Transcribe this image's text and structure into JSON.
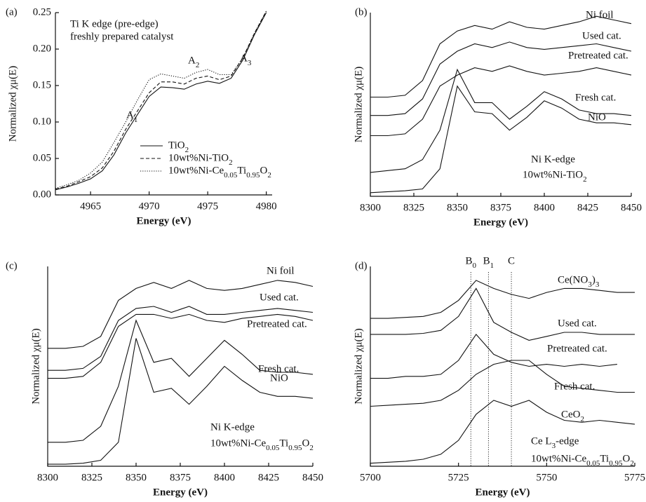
{
  "chart_data": [
    {
      "type": "line",
      "panel": "(a)",
      "title_lines": [
        "Ti K edge (pre-edge)",
        "freshly prepared catalyst"
      ],
      "annotations": [
        "A1",
        "A2",
        "A3"
      ],
      "xlabel": "Energy (eV)",
      "ylabel": "Normalized χμ(E)",
      "xlim": [
        4962,
        4980.5
      ],
      "ylim": [
        0,
        0.25
      ],
      "xticks": [
        4965,
        4970,
        4975,
        4980
      ],
      "yticks": [
        {
          "value": 0,
          "label": "0.00"
        },
        0.05,
        {
          "value": 0.1,
          "label": "0.10"
        },
        0.15,
        {
          "value": 0.2,
          "label": "0.20"
        },
        0.25
      ],
      "legend": "lower-right",
      "x": [
        4962,
        4963,
        4964,
        4965,
        4966,
        4967,
        4968,
        4969,
        4970,
        4971,
        4972,
        4973,
        4974,
        4975,
        4976,
        4977,
        4978,
        4979,
        4980
      ],
      "series": [
        {
          "name": "TiO2",
          "color": "#111111",
          "dash": "solid",
          "values": [
            0.007,
            0.011,
            0.016,
            0.022,
            0.033,
            0.055,
            0.085,
            0.11,
            0.135,
            0.148,
            0.147,
            0.145,
            0.152,
            0.156,
            0.153,
            0.16,
            0.185,
            0.22,
            0.25
          ]
        },
        {
          "name": "10wt%Ni-TiO2",
          "color": "#111111",
          "dash": "dashed",
          "values": [
            0.008,
            0.012,
            0.018,
            0.025,
            0.037,
            0.06,
            0.09,
            0.115,
            0.14,
            0.155,
            0.155,
            0.152,
            0.16,
            0.163,
            0.158,
            0.163,
            0.188,
            0.222,
            0.252
          ]
        },
        {
          "name": "10wt%Ni-Ce0.05Ti0.95O2",
          "color": "#111111",
          "dash": "dotted",
          "values": [
            0.009,
            0.014,
            0.02,
            0.03,
            0.045,
            0.072,
            0.1,
            0.13,
            0.158,
            0.166,
            0.163,
            0.16,
            0.168,
            0.172,
            0.165,
            0.165,
            0.188,
            0.222,
            0.252
          ]
        }
      ]
    },
    {
      "type": "line",
      "panel": "(b)",
      "notes": [
        "Ni K-edge",
        "10wt%Ni-TiO2"
      ],
      "xlabel": "Energy (eV)",
      "ylabel": "Normalized χμ(E)",
      "xlim": [
        8300,
        8450
      ],
      "ylim": [
        0,
        10
      ],
      "xticks": [
        8300,
        8325,
        8350,
        8375,
        8400,
        8425,
        8450
      ],
      "x": [
        8300,
        8310,
        8320,
        8330,
        8340,
        8350,
        8360,
        8370,
        8380,
        8390,
        8400,
        8410,
        8420,
        8430,
        8440,
        8450
      ],
      "series": [
        {
          "name": "Ni foil",
          "color": "#111111",
          "values": [
            5.4,
            5.4,
            5.5,
            6.3,
            8.3,
            9.0,
            9.3,
            9.1,
            9.5,
            9.2,
            9.1,
            9.3,
            9.5,
            9.8,
            9.6,
            9.4
          ]
        },
        {
          "name": "Used cat.",
          "color": "#111111",
          "values": [
            4.4,
            4.4,
            4.5,
            5.3,
            7.2,
            7.9,
            8.3,
            8.1,
            8.4,
            8.1,
            8.0,
            8.1,
            8.2,
            8.3,
            8.1,
            7.9
          ]
        },
        {
          "name": "Pretreated cat.",
          "color": "#111111",
          "values": [
            3.3,
            3.3,
            3.4,
            4.2,
            6.0,
            6.6,
            7.0,
            6.8,
            7.1,
            6.8,
            6.6,
            6.7,
            6.8,
            7.0,
            6.8,
            6.6
          ]
        },
        {
          "name": "Fresh cat.",
          "color": "#111111",
          "values": [
            1.3,
            1.4,
            1.5,
            2.0,
            3.6,
            6.9,
            5.1,
            5.1,
            4.2,
            4.9,
            5.7,
            5.3,
            4.7,
            4.5,
            4.5,
            4.4
          ]
        },
        {
          "name": "NiO",
          "color": "#111111",
          "values": [
            0.2,
            0.25,
            0.3,
            0.4,
            1.5,
            6.0,
            4.6,
            4.5,
            3.6,
            4.3,
            5.2,
            4.8,
            4.2,
            4.0,
            4.0,
            3.9
          ]
        }
      ]
    },
    {
      "type": "line",
      "panel": "(c)",
      "notes": [
        "Ni K-edge",
        "10wt%Ni-Ce0.05Ti0.95O2"
      ],
      "xlabel": "Energy (eV)",
      "ylabel": "Normalized χμ(E)",
      "xlim": [
        8300,
        8450
      ],
      "ylim": [
        0,
        10
      ],
      "xticks": [
        8300,
        8325,
        8350,
        8375,
        8400,
        8425,
        8450
      ],
      "x": [
        8300,
        8310,
        8320,
        8330,
        8340,
        8350,
        8360,
        8370,
        8380,
        8390,
        8400,
        8410,
        8420,
        8430,
        8440,
        8450
      ],
      "series": [
        {
          "name": "Ni foil",
          "color": "#111111",
          "values": [
            5.9,
            5.9,
            6.0,
            6.5,
            8.3,
            8.9,
            9.2,
            8.9,
            9.3,
            8.9,
            8.8,
            8.9,
            9.1,
            9.3,
            9.2,
            9.0
          ]
        },
        {
          "name": "Used cat.",
          "color": "#111111",
          "values": [
            4.8,
            4.8,
            4.9,
            5.5,
            7.3,
            7.9,
            8.0,
            7.7,
            8.0,
            7.6,
            7.6,
            7.7,
            7.8,
            7.9,
            7.8,
            7.7
          ]
        },
        {
          "name": "Pretreated cat.",
          "color": "#111111",
          "values": [
            4.4,
            4.4,
            4.5,
            5.2,
            7.0,
            7.6,
            7.6,
            7.4,
            7.6,
            7.3,
            7.2,
            7.4,
            7.5,
            7.6,
            7.5,
            7.3
          ]
        },
        {
          "name": "Fresh cat.",
          "color": "#111111",
          "values": [
            1.2,
            1.2,
            1.3,
            2.0,
            4.0,
            7.3,
            5.2,
            5.4,
            4.5,
            5.4,
            6.3,
            5.6,
            4.8,
            4.7,
            4.7,
            4.6
          ]
        },
        {
          "name": "NiO",
          "color": "#111111",
          "values": [
            0.1,
            0.1,
            0.15,
            0.3,
            1.2,
            6.4,
            3.7,
            3.9,
            3.1,
            4.0,
            5.0,
            4.3,
            3.7,
            3.5,
            3.5,
            3.4
          ]
        }
      ]
    },
    {
      "type": "line",
      "panel": "(d)",
      "notes": [
        "Ce L3-edge",
        "10wt%Ni-Ce0.05Ti0.95O2"
      ],
      "markers": [
        {
          "label": "B0",
          "x": 5728.5
        },
        {
          "label": "B1",
          "x": 5733.5
        },
        {
          "label": "C",
          "x": 5740
        }
      ],
      "xlabel": "Energy (eV)",
      "ylabel": "Normalized χμ(E)",
      "xlim": [
        5700,
        5775
      ],
      "ylim": [
        0,
        10
      ],
      "xticks": [
        5700,
        5725,
        5750,
        5775
      ],
      "x": [
        5700,
        5705,
        5710,
        5715,
        5720,
        5725,
        5730,
        5735,
        5740,
        5745,
        5750,
        5755,
        5760,
        5765,
        5770,
        5775
      ],
      "series": [
        {
          "name": "Ce(NO3)3",
          "color": "#111111",
          "values": [
            7.4,
            7.4,
            7.45,
            7.5,
            7.7,
            8.3,
            9.3,
            8.9,
            8.6,
            8.4,
            8.7,
            8.9,
            8.9,
            8.8,
            8.7,
            8.7
          ]
        },
        {
          "name": "Used cat.",
          "color": "#111111",
          "values": [
            6.6,
            6.6,
            6.6,
            6.65,
            6.8,
            7.5,
            8.9,
            7.2,
            6.7,
            6.3,
            6.5,
            6.7,
            6.7,
            6.6,
            6.6,
            6.6
          ]
        },
        {
          "name": "Pretreated cat.",
          "color": "#111111",
          "values": [
            4.4,
            4.4,
            4.5,
            4.5,
            4.6,
            5.3,
            6.6,
            5.6,
            5.2,
            5.0,
            5.1,
            5.0,
            5.1,
            5.0,
            5.1,
            null
          ]
        },
        {
          "name": "Fresh cat.",
          "color": "#111111",
          "values": [
            3.0,
            3.05,
            3.1,
            3.15,
            3.3,
            3.8,
            4.6,
            5.1,
            5.3,
            5.3,
            4.6,
            4.0,
            3.9,
            3.8,
            3.7,
            3.7
          ]
        },
        {
          "name": "CeO2",
          "color": "#111111",
          "values": [
            0.15,
            0.2,
            0.25,
            0.35,
            0.6,
            1.3,
            2.6,
            3.3,
            3.0,
            3.3,
            2.7,
            2.3,
            2.2,
            2.3,
            2.2,
            2.1
          ]
        }
      ]
    }
  ]
}
